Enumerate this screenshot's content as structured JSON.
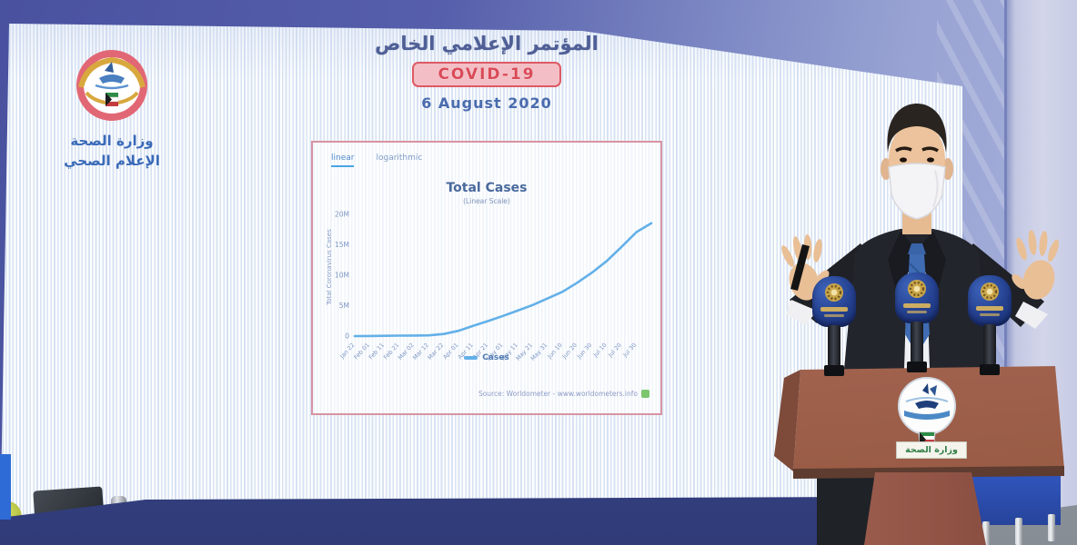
{
  "screen": {
    "header": {
      "title_ar": "المؤتمر الإعلامي الخاص",
      "badge": "COVID-19",
      "date": "6 August 2020"
    },
    "moh_logo": {
      "name_ar": "وزارة الصحة",
      "dept_ar": "الإعلام الصحي"
    }
  },
  "chart": {
    "tabs": [
      {
        "label": "linear",
        "active": true
      },
      {
        "label": "logarithmic",
        "active": false
      }
    ],
    "title": "Total Cases",
    "subtitle": "(Linear Scale)",
    "ylabel": "Total Coronavirus Cases",
    "legend_label": "Cases",
    "source": "Source: Worldometer - www.worldometers.info"
  },
  "chart_data": {
    "type": "line",
    "title": "Total Cases",
    "subtitle": "(Linear Scale)",
    "ylabel": "Total Coronavirus Cases",
    "x_labels": [
      "Jan 22",
      "Feb 01",
      "Feb 11",
      "Feb 21",
      "Mar 02",
      "Mar 12",
      "Mar 22",
      "Apr 01",
      "Apr 11",
      "Apr 21",
      "May 01",
      "May 11",
      "May 21",
      "May 31",
      "Jun 10",
      "Jun 20",
      "Jun 30",
      "Jul 10",
      "Jul 20",
      "Jul 30"
    ],
    "values_millions": [
      0.0006,
      0.012,
      0.045,
      0.077,
      0.089,
      0.126,
      0.34,
      0.86,
      1.7,
      2.48,
      3.31,
      4.18,
      5.09,
      6.17,
      7.25,
      8.75,
      10.41,
      12.32,
      14.64,
      17.06,
      18.5
    ],
    "yticks": [
      {
        "label": "0",
        "value": 0
      },
      {
        "label": "5M",
        "value": 5
      },
      {
        "label": "10M",
        "value": 10
      },
      {
        "label": "15M",
        "value": 15
      },
      {
        "label": "20M",
        "value": 20
      }
    ],
    "ylim_millions": [
      0,
      22.5
    ],
    "legend": [
      "Cases"
    ],
    "legend_position": "bottom",
    "grid": false,
    "line_color": "#63b0e8"
  },
  "podium": {
    "plate_ar": "وزارة الصحة"
  },
  "colors": {
    "wall_blue": "#4a53a2",
    "covid_red": "#d94b57",
    "covid_bg": "#f3bec6",
    "header_blue": "#4f5f96",
    "date_blue": "#4a6cae",
    "logo_text_blue": "#3a6ab8",
    "chart_text": "#7e96c4",
    "line_blue": "#63b0e8",
    "podium_brown": "#a96a58",
    "desk_blue": "#3a478f",
    "plate_green": "#2f7d46",
    "mic_blue": "#24408f",
    "mic_gold": "#deb85c"
  }
}
